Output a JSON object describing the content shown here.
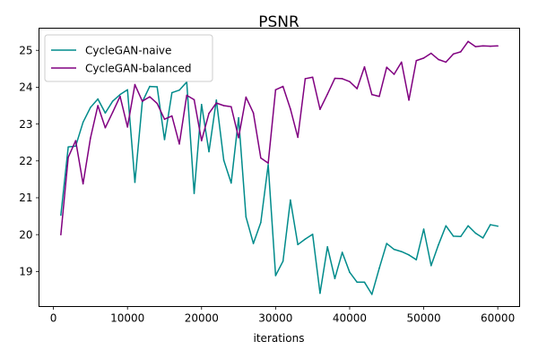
{
  "chart_data": {
    "type": "line",
    "title": "PSNR",
    "xlabel": "iterations",
    "ylabel": "",
    "xlim": [
      -1950,
      62950
    ],
    "ylim": [
      18.05,
      25.6
    ],
    "xticks": [
      0,
      10000,
      20000,
      30000,
      40000,
      50000,
      60000
    ],
    "yticks": [
      19,
      20,
      21,
      22,
      23,
      24,
      25
    ],
    "grid": false,
    "legend_position": "top-left",
    "x": [
      1000,
      2000,
      3000,
      4000,
      5000,
      6000,
      7000,
      8000,
      9000,
      10000,
      11000,
      12000,
      13000,
      14000,
      15000,
      16000,
      17000,
      18000,
      19000,
      20000,
      21000,
      22000,
      23000,
      24000,
      25000,
      26000,
      27000,
      28000,
      29000,
      30000,
      31000,
      32000,
      33000,
      34000,
      35000,
      36000,
      37000,
      38000,
      39000,
      40000,
      41000,
      42000,
      43000,
      44000,
      45000,
      46000,
      47000,
      48000,
      49000,
      50000,
      51000,
      52000,
      53000,
      54000,
      55000,
      56000,
      57000,
      58000,
      59000,
      60000
    ],
    "series": [
      {
        "name": "CycleGAN-naive",
        "color": "#008b8b",
        "values": [
          20.53,
          22.38,
          22.4,
          23.05,
          23.45,
          23.68,
          23.3,
          23.62,
          23.8,
          23.93,
          21.42,
          23.6,
          24.02,
          24.01,
          22.58,
          23.85,
          23.92,
          24.14,
          21.12,
          23.53,
          22.25,
          23.65,
          22.02,
          21.4,
          23.17,
          20.48,
          19.76,
          20.33,
          21.9,
          18.89,
          19.28,
          20.94,
          19.73,
          19.88,
          20.01,
          18.41,
          19.67,
          18.81,
          19.52,
          18.98,
          18.71,
          18.71,
          18.38,
          19.09,
          19.76,
          19.6,
          19.54,
          19.45,
          19.32,
          20.15,
          19.16,
          19.73,
          20.24,
          19.96,
          19.95,
          20.24,
          20.04,
          19.91,
          20.27,
          20.23
        ]
      },
      {
        "name": "CycleGAN-balanced",
        "color": "#800080",
        "values": [
          20.0,
          22.1,
          22.55,
          21.38,
          22.62,
          23.5,
          22.9,
          23.32,
          23.75,
          22.92,
          24.07,
          23.62,
          23.74,
          23.56,
          23.13,
          23.22,
          22.46,
          23.78,
          23.66,
          22.55,
          23.29,
          23.57,
          23.5,
          23.47,
          22.63,
          23.73,
          23.3,
          22.08,
          21.94,
          23.93,
          24.02,
          23.41,
          22.64,
          24.23,
          24.27,
          23.4,
          23.81,
          24.24,
          24.23,
          24.15,
          23.96,
          24.55,
          23.8,
          23.75,
          24.54,
          24.35,
          24.68,
          23.65,
          24.72,
          24.79,
          24.92,
          24.75,
          24.68,
          24.9,
          24.96,
          25.24,
          25.1,
          25.12,
          25.11,
          25.12
        ]
      }
    ]
  }
}
